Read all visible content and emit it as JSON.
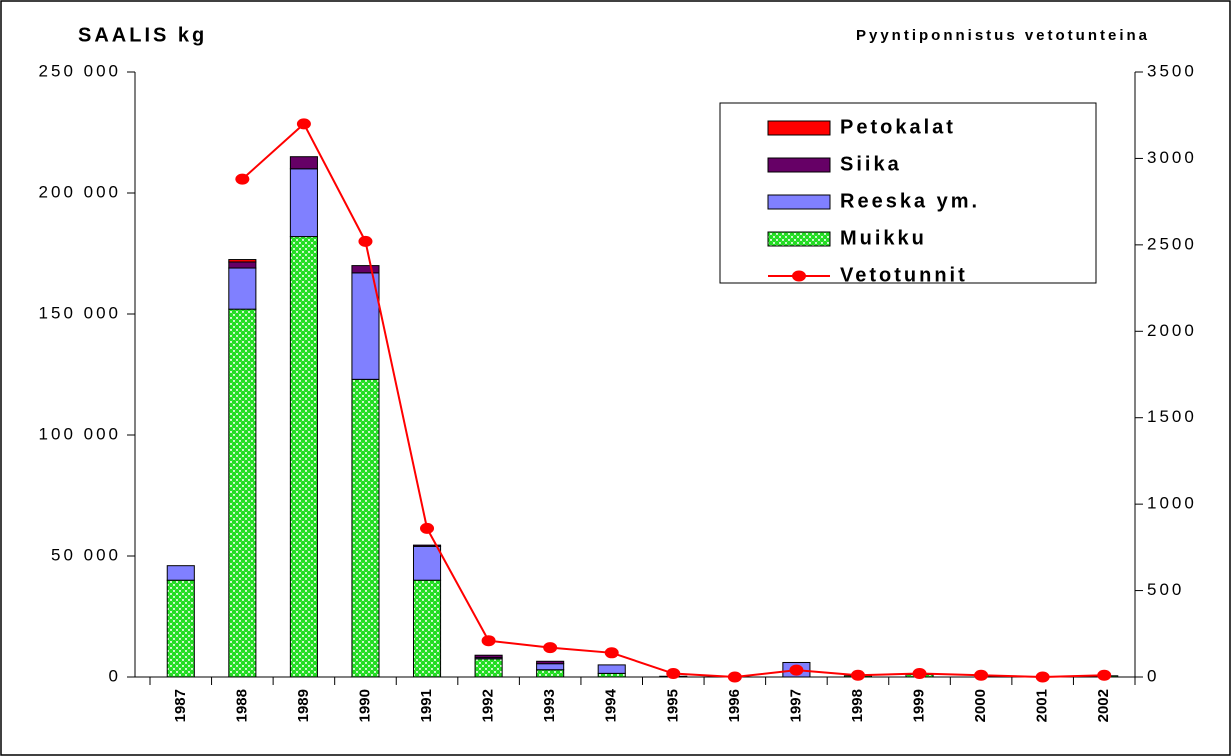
{
  "chart_data": {
    "type": "bar",
    "stacked": true,
    "title": "SAALIS kg",
    "y2_title": "Pyyntiponnistus vetotunteina",
    "categories": [
      "1987",
      "1988",
      "1989",
      "1990",
      "1991",
      "1992",
      "1993",
      "1994",
      "1995",
      "1996",
      "1997",
      "1998",
      "1999",
      "2000",
      "2001",
      "2002"
    ],
    "series": [
      {
        "name": "Muikku",
        "color": "#22dd22",
        "pattern": true,
        "values": [
          40000,
          152000,
          182000,
          123000,
          40000,
          7500,
          3000,
          1500,
          300,
          0,
          0,
          500,
          1000,
          0,
          0,
          500
        ]
      },
      {
        "name": "Reeska ym.",
        "color": "#8080ff",
        "values": [
          6000,
          17000,
          28000,
          44000,
          14000,
          500,
          2500,
          3500,
          0,
          0,
          6000,
          0,
          0,
          0,
          0,
          0
        ]
      },
      {
        "name": "Siika",
        "color": "#660066",
        "values": [
          0,
          2500,
          5000,
          3000,
          500,
          1000,
          1000,
          0,
          0,
          0,
          0,
          0,
          0,
          0,
          0,
          0
        ]
      },
      {
        "name": "Petokalat",
        "color": "#ff0000",
        "values": [
          0,
          1000,
          0,
          0,
          0,
          0,
          0,
          0,
          0,
          0,
          0,
          0,
          0,
          0,
          0,
          0
        ]
      },
      {
        "name": "Vetotunnit",
        "type": "line",
        "axis": "y2",
        "color": "#ff0000",
        "values": [
          null,
          2880,
          3200,
          2520,
          860,
          210,
          170,
          140,
          20,
          0,
          40,
          10,
          20,
          10,
          0,
          10
        ]
      }
    ],
    "ylim": [
      0,
      250000
    ],
    "yticks": [
      0,
      {
        "value": 50000,
        "label": "50 000"
      },
      {
        "value": 100000,
        "label": "100 000"
      },
      {
        "value": 150000,
        "label": "150 000"
      },
      {
        "value": 200000,
        "label": "200 000"
      },
      {
        "value": 250000,
        "label": "250 000"
      }
    ],
    "y2lim": [
      0,
      3500
    ],
    "y2ticks": [
      0,
      500,
      1000,
      1500,
      2000,
      2500,
      3000,
      3500
    ],
    "legend": "upper right"
  }
}
